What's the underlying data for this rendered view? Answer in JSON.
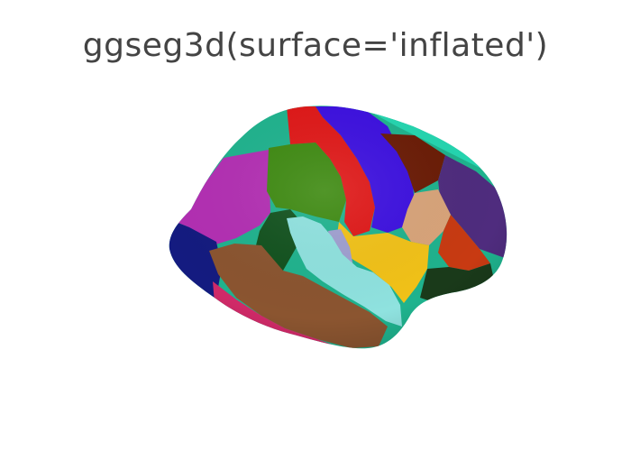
{
  "title": "ggseg3d(surface='inflated')",
  "regions": [
    {
      "name": "superior-frontal",
      "color": "#1fb38e"
    },
    {
      "name": "paracentral-dorsal",
      "color": "#24d6b0"
    },
    {
      "name": "rostral-middle-frontal",
      "color": "#b32fb3"
    },
    {
      "name": "lateral-orbitofrontal",
      "color": "#141b80"
    },
    {
      "name": "caudal-middle-frontal",
      "color": "#3e8a11"
    },
    {
      "name": "precentral",
      "color": "#e01818"
    },
    {
      "name": "postcentral",
      "color": "#3d10e0"
    },
    {
      "name": "superior-parietal",
      "color": "#6b1c06"
    },
    {
      "name": "inferior-parietal",
      "color": "#4f2c7e"
    },
    {
      "name": "supramarginal",
      "color": "#d9a47a"
    },
    {
      "name": "lateral-occipital-upper",
      "color": "#c83a12"
    },
    {
      "name": "pars-triangularis",
      "color": "#12521e"
    },
    {
      "name": "insula",
      "color": "#f2c218"
    },
    {
      "name": "transverse-temporal",
      "color": "#9f9fd0"
    },
    {
      "name": "superior-temporal",
      "color": "#8fe2df"
    },
    {
      "name": "middle-temporal",
      "color": "#8b5530"
    },
    {
      "name": "inferior-temporal",
      "color": "#d02a68"
    },
    {
      "name": "lateral-occipital-lower",
      "color": "#1a3a1a"
    }
  ]
}
